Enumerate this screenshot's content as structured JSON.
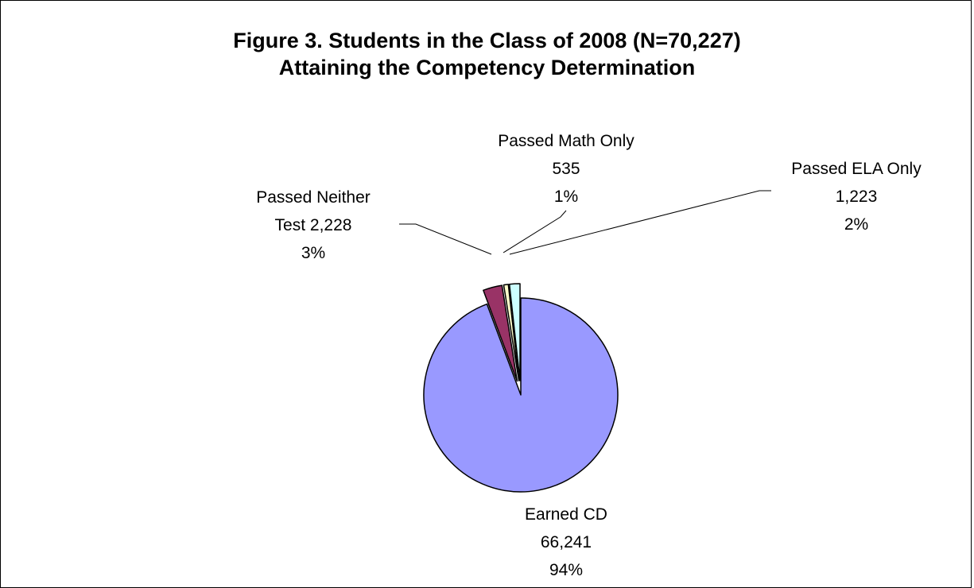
{
  "chart_data": {
    "type": "pie",
    "title_lines": [
      "Figure 3. Students in the Class of 2008 (N=70,227)",
      "Attaining the Competency Determination"
    ],
    "slices": [
      {
        "name": "Earned CD",
        "value": 66241,
        "percent": "94%",
        "value_label": "66,241",
        "color": "#9999ff",
        "label_lines": [
          "Earned CD",
          "66,241",
          "94%"
        ]
      },
      {
        "name": "Passed Neither Test",
        "value": 2228,
        "percent": "3%",
        "value_label": "2,228",
        "color": "#993366",
        "label_lines": [
          "Passed Neither",
          "Test 2,228",
          "3%"
        ]
      },
      {
        "name": "Passed Math Only",
        "value": 535,
        "percent": "1%",
        "value_label": "535",
        "color": "#ffffcc",
        "label_lines": [
          "Passed Math Only",
          "535",
          "1%"
        ]
      },
      {
        "name": "Passed ELA Only",
        "value": 1223,
        "percent": "2%",
        "value_label": "1,223",
        "color": "#ccffff",
        "label_lines": [
          "Passed ELA Only",
          "1,223",
          "2%"
        ]
      }
    ],
    "exploded": true,
    "legend": "none"
  }
}
